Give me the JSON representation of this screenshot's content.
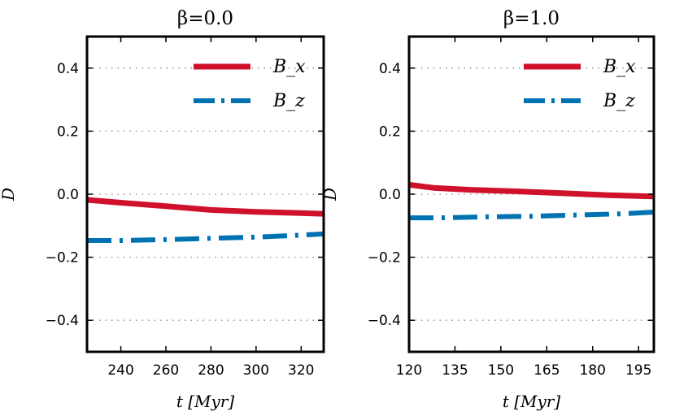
{
  "chart_data": [
    {
      "type": "line",
      "title": "β=0.0",
      "xlabel": "t [Myr]",
      "ylabel": "D",
      "xlim": [
        225,
        330
      ],
      "ylim": [
        -0.5,
        0.5
      ],
      "xticks": [
        240,
        260,
        280,
        300,
        320
      ],
      "yticks": [
        0.4,
        0.2,
        0.0,
        -0.2,
        -0.4
      ],
      "grid": "horizontal-dotted",
      "legend": "top-right",
      "series": [
        {
          "name": "B_x",
          "style": "solid",
          "color": "#d0112b",
          "x": [
            225,
            240,
            260,
            280,
            300,
            320,
            330
          ],
          "y": [
            -0.018,
            -0.027,
            -0.038,
            -0.05,
            -0.056,
            -0.06,
            -0.062
          ]
        },
        {
          "name": "B_z",
          "style": "dashdot",
          "color": "#0072b2",
          "x": [
            225,
            240,
            260,
            280,
            300,
            320,
            330
          ],
          "y": [
            -0.147,
            -0.147,
            -0.144,
            -0.14,
            -0.136,
            -0.13,
            -0.126
          ]
        }
      ]
    },
    {
      "type": "line",
      "title": "β=1.0",
      "xlabel": "t [Myr]",
      "ylabel": "D",
      "xlim": [
        120,
        200
      ],
      "ylim": [
        -0.5,
        0.5
      ],
      "xticks": [
        120,
        135,
        150,
        165,
        180,
        195
      ],
      "yticks": [
        0.4,
        0.2,
        0.0,
        -0.2,
        -0.4
      ],
      "grid": "horizontal-dotted",
      "legend": "top-right",
      "series": [
        {
          "name": "B_x",
          "style": "solid",
          "color": "#d0112b",
          "x": [
            120,
            128,
            140,
            155,
            170,
            185,
            200
          ],
          "y": [
            0.03,
            0.02,
            0.014,
            0.009,
            0.003,
            -0.003,
            -0.007
          ]
        },
        {
          "name": "B_z",
          "style": "dashdot",
          "color": "#0072b2",
          "x": [
            120,
            130,
            145,
            160,
            175,
            190,
            200
          ],
          "y": [
            -0.075,
            -0.075,
            -0.072,
            -0.07,
            -0.066,
            -0.062,
            -0.057
          ]
        }
      ]
    }
  ]
}
